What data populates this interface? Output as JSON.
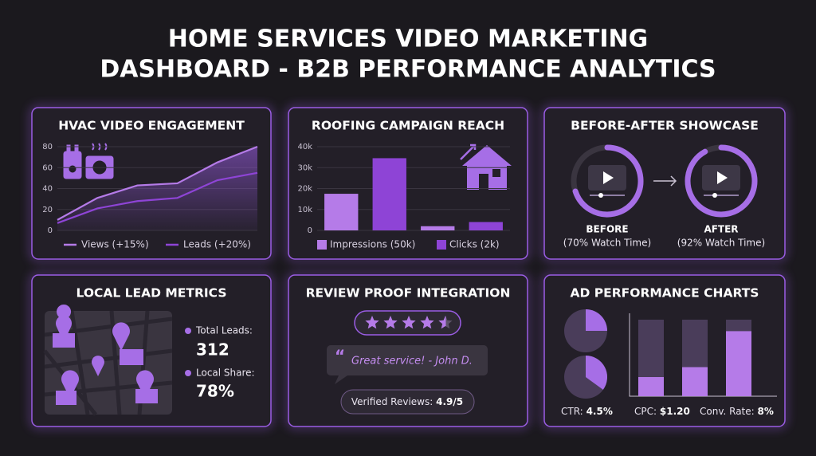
{
  "title": [
    "HOME SERVICES VIDEO MARKETING",
    "DASHBOARD - B2B PERFORMANCE ANALYTICS"
  ],
  "chart_data": [
    {
      "type": "line",
      "title": "HVAC VIDEO ENGAGEMENT",
      "categories": [
        null,
        null,
        null,
        null,
        null,
        null
      ],
      "series": [
        {
          "name": "Views (+15%)",
          "color": "#b57be8",
          "values": [
            10,
            31,
            43,
            45,
            65,
            80
          ]
        },
        {
          "name": "Leads (+20%)",
          "color": "#8e44d6",
          "values": [
            7,
            21,
            28,
            31,
            48,
            55
          ]
        }
      ],
      "ylim": [
        0,
        80
      ],
      "yticks": [
        0,
        20,
        40,
        60,
        80
      ]
    },
    {
      "type": "bar",
      "title": "ROOFING CAMPAIGN REACH",
      "categories": [
        null,
        null,
        null,
        null
      ],
      "series": [
        {
          "name": "Impressions (50k)",
          "color": "#b57be8",
          "values": [
            17500,
            null,
            2000,
            null
          ]
        },
        {
          "name": "Clicks (2k)",
          "color": "#8e44d6",
          "values": [
            null,
            34500,
            null,
            4000
          ]
        }
      ],
      "ylim": [
        0,
        40000
      ],
      "yticks": [
        0,
        {
          "value": 10000,
          "label": "10k"
        },
        {
          "value": 20000,
          "label": "20k"
        },
        {
          "value": 30000,
          "label": "30k"
        },
        {
          "value": 40000,
          "label": "40k"
        }
      ]
    }
  ],
  "showcase": {
    "title": "BEFORE-AFTER SHOWCASE",
    "items": [
      {
        "label": "BEFORE",
        "caption": "(70% Watch Time)",
        "watch_time": 70
      },
      {
        "label": "AFTER",
        "caption": "(92% Watch Time)",
        "watch_time": 92
      }
    ]
  },
  "local_leads": {
    "title": "LOCAL LEAD METRICS",
    "metrics": [
      {
        "label": "Total Leads:",
        "value": "312"
      },
      {
        "label": "Local Share:",
        "value": "78%"
      }
    ]
  },
  "reviews": {
    "title": "REVIEW PROOF INTEGRATION",
    "stars": 4.5,
    "quote": "Great service! - John D.",
    "verified_label": "Verified Reviews:",
    "verified_value": "4.9/5"
  },
  "ad_performance": {
    "title": "AD PERFORMANCE CHARTS",
    "pie_shares": [
      25,
      35
    ],
    "bar_fills": [
      25,
      38,
      85
    ],
    "metrics": [
      {
        "label": "CTR:",
        "value": "4.5%"
      },
      {
        "label": "CPC:",
        "value": "$1.20"
      },
      {
        "label": "Conv. Rate:",
        "value": "8%"
      }
    ]
  }
}
